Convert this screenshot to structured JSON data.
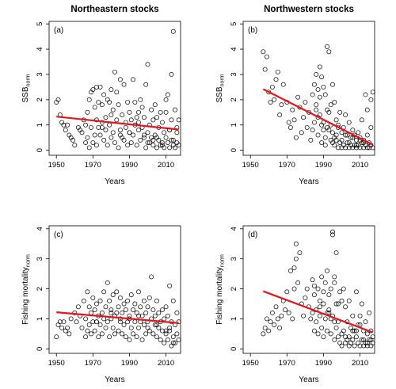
{
  "column_titles": [
    "Northeastern stocks",
    "Northwestern stocks"
  ],
  "colors": {
    "points": "#000000",
    "trend": "#e8141b"
  },
  "chart_data": [
    {
      "type": "scatter",
      "panel": "(a)",
      "xlabel": "Years",
      "ylabel_main": "SSB",
      "ylabel_sub": "norm",
      "xlim": [
        1946,
        2018
      ],
      "ylim": [
        -0.2,
        5.1
      ],
      "xticks": [
        1950,
        1970,
        1990,
        2010
      ],
      "yticks": [
        0,
        1,
        2,
        3,
        4,
        5
      ],
      "trend": {
        "x": [
          1950,
          2017
        ],
        "y": [
          1.33,
          0.82
        ]
      },
      "x": [
        1950,
        1951,
        1952,
        1953,
        1954,
        1955,
        1956,
        1957,
        1958,
        1959,
        1960,
        1962,
        1963,
        1964,
        1965,
        1966,
        1966,
        1967,
        1967,
        1968,
        1968,
        1969,
        1969,
        1970,
        1970,
        1971,
        1971,
        1972,
        1972,
        1973,
        1973,
        1974,
        1974,
        1975,
        1975,
        1976,
        1976,
        1977,
        1977,
        1978,
        1978,
        1979,
        1979,
        1980,
        1980,
        1981,
        1981,
        1982,
        1982,
        1983,
        1983,
        1984,
        1984,
        1985,
        1985,
        1986,
        1986,
        1987,
        1987,
        1988,
        1988,
        1989,
        1989,
        1990,
        1990,
        1991,
        1991,
        1992,
        1992,
        1993,
        1993,
        1994,
        1994,
        1995,
        1995,
        1996,
        1996,
        1997,
        1997,
        1998,
        1998,
        1999,
        1999,
        2000,
        2000,
        2001,
        2001,
        2002,
        2002,
        2003,
        2003,
        2004,
        2004,
        2005,
        2005,
        2006,
        2006,
        2007,
        2007,
        2008,
        2008,
        2009,
        2009,
        2010,
        2010,
        2011,
        2011,
        2012,
        2012,
        2013,
        2013,
        2014,
        2014,
        2015,
        2015,
        2016,
        2016,
        2017,
        2017,
        1985,
        1995,
        2000,
        2005,
        2010,
        2013,
        1975,
        1980,
        1990,
        2008,
        2014,
        2012,
        2003,
        1998,
        1972,
        2016
      ],
      "y": [
        1.9,
        2.0,
        1.4,
        1.1,
        1.0,
        0.8,
        1.0,
        0.6,
        0.5,
        0.4,
        0.2,
        0.9,
        0.8,
        0.7,
        1.2,
        1.0,
        0.3,
        1.5,
        0.5,
        2.0,
        0.1,
        2.3,
        0.9,
        2.4,
        0.3,
        1.7,
        0.6,
        2.5,
        0.2,
        1.9,
        0.9,
        2.5,
        0.6,
        1.8,
        1.1,
        2.2,
        0.4,
        1.3,
        0.8,
        2.0,
        0.2,
        1.9,
        1.0,
        2.4,
        0.5,
        1.6,
        0.7,
        3.1,
        0.3,
        2.3,
        1.2,
        1.8,
        0.1,
        2.8,
        0.8,
        1.4,
        0.5,
        2.6,
        0.4,
        1.1,
        0.9,
        1.9,
        0.2,
        1.5,
        0.7,
        1.2,
        0.3,
        2.8,
        0.6,
        1.9,
        1.0,
        1.3,
        0.2,
        1.5,
        0.8,
        2.0,
        0.4,
        1.7,
        0.9,
        1.3,
        0.5,
        2.6,
        0.1,
        3.4,
        0.7,
        1.0,
        0.3,
        1.6,
        0.5,
        1.2,
        0.2,
        1.8,
        0.6,
        1.3,
        0.1,
        0.9,
        0.4,
        1.5,
        0.2,
        1.1,
        0.3,
        0.7,
        0.1,
        1.5,
        0.5,
        2.2,
        0.3,
        0.8,
        0.1,
        1.2,
        0.4,
        4.7,
        0.2,
        1.6,
        0.1,
        0.9,
        0.3,
        1.2,
        0.2,
        0.6,
        1.1,
        0.3,
        0.5,
        2.0,
        3.0,
        0.9,
        1.4,
        0.7,
        0.2,
        0.4,
        0.8,
        0.4,
        0.6,
        1.2,
        0.7
      ]
    },
    {
      "type": "scatter",
      "panel": "(b)",
      "xlabel": "Years",
      "ylabel_main": "SSB",
      "ylabel_sub": "norm",
      "xlim": [
        1946,
        2018
      ],
      "ylim": [
        -0.2,
        5.1
      ],
      "xticks": [
        1950,
        1970,
        1990,
        2010
      ],
      "yticks": [
        0,
        1,
        2,
        3,
        4,
        5
      ],
      "trend": {
        "x": [
          1957,
          2017
        ],
        "y": [
          2.42,
          0.22
        ]
      },
      "x": [
        1957,
        1958,
        1959,
        1960,
        1961,
        1962,
        1963,
        1964,
        1965,
        1966,
        1967,
        1968,
        1970,
        1971,
        1972,
        1973,
        1974,
        1975,
        1976,
        1977,
        1978,
        1979,
        1980,
        1981,
        1982,
        1983,
        1984,
        1984,
        1985,
        1985,
        1986,
        1986,
        1987,
        1987,
        1988,
        1988,
        1989,
        1989,
        1990,
        1990,
        1991,
        1991,
        1992,
        1992,
        1993,
        1993,
        1994,
        1994,
        1995,
        1995,
        1996,
        1996,
        1997,
        1997,
        1998,
        1998,
        1999,
        1999,
        2000,
        2000,
        2001,
        2001,
        2002,
        2002,
        2003,
        2003,
        2004,
        2004,
        2005,
        2005,
        2006,
        2006,
        2007,
        2007,
        2008,
        2008,
        2009,
        2009,
        2010,
        2010,
        2011,
        2011,
        2012,
        2012,
        2013,
        2013,
        2014,
        2014,
        2015,
        2015,
        2016,
        2016,
        2017,
        2017,
        1986,
        1988,
        1990,
        1992,
        1994,
        1996,
        1998,
        2000,
        2002,
        2004,
        2006,
        2008,
        2010,
        2012,
        2014,
        2016,
        1987,
        1989,
        1991,
        1993,
        1995,
        1997
      ],
      "y": [
        3.9,
        3.2,
        3.7,
        2.3,
        1.9,
        2.5,
        2.0,
        2.8,
        3.1,
        1.4,
        1.8,
        2.6,
        1.9,
        1.1,
        0.9,
        1.6,
        1.2,
        0.5,
        2.1,
        1.7,
        0.7,
        1.3,
        1.9,
        0.9,
        1.5,
        0.4,
        2.2,
        0.8,
        2.6,
        1.1,
        3.0,
        1.6,
        2.4,
        0.6,
        3.3,
        1.4,
        2.9,
        0.3,
        2.5,
        1.1,
        2.2,
        0.2,
        4.1,
        0.9,
        3.9,
        1.5,
        1.8,
        0.4,
        2.6,
        0.7,
        1.9,
        0.2,
        1.2,
        0.6,
        1.0,
        0.1,
        1.5,
        0.3,
        0.7,
        0.1,
        0.9,
        0.2,
        1.4,
        0.1,
        0.6,
        0.3,
        1.1,
        0.1,
        0.5,
        0.2,
        0.8,
        0.1,
        0.6,
        0.2,
        0.4,
        0.1,
        0.7,
        0.2,
        0.5,
        0.1,
        1.2,
        0.3,
        0.4,
        0.1,
        2.2,
        0.2,
        1.6,
        0.1,
        0.3,
        0.1,
        2.0,
        0.2,
        2.3,
        0.1,
        1.8,
        2.1,
        0.8,
        1.6,
        1.0,
        0.5,
        0.9,
        0.4,
        0.6,
        0.3,
        0.5,
        0.2,
        0.4,
        0.3,
        0.6,
        0.9,
        1.3,
        1.0,
        0.5,
        0.8,
        0.3,
        0.4
      ]
    },
    {
      "type": "scatter",
      "panel": "(c)",
      "xlabel": "Years",
      "ylabel_main": "Fishing mortality",
      "ylabel_sub": "norm",
      "xlim": [
        1946,
        2018
      ],
      "ylim": [
        -0.15,
        4.1
      ],
      "xticks": [
        1950,
        1970,
        1990,
        2010
      ],
      "yticks": [
        0,
        1,
        2,
        3,
        4
      ],
      "trend": {
        "x": [
          1950,
          2017
        ],
        "y": [
          1.22,
          0.86
        ]
      },
      "x": [
        1950,
        1951,
        1952,
        1953,
        1954,
        1955,
        1956,
        1957,
        1958,
        1960,
        1961,
        1962,
        1963,
        1964,
        1965,
        1966,
        1966,
        1967,
        1967,
        1968,
        1968,
        1969,
        1969,
        1970,
        1970,
        1971,
        1971,
        1972,
        1972,
        1973,
        1973,
        1974,
        1974,
        1975,
        1975,
        1976,
        1976,
        1977,
        1977,
        1978,
        1978,
        1979,
        1979,
        1980,
        1980,
        1981,
        1981,
        1982,
        1982,
        1983,
        1983,
        1984,
        1984,
        1985,
        1985,
        1986,
        1986,
        1987,
        1987,
        1988,
        1988,
        1989,
        1989,
        1990,
        1990,
        1991,
        1991,
        1992,
        1992,
        1993,
        1993,
        1994,
        1994,
        1995,
        1995,
        1996,
        1996,
        1997,
        1997,
        1998,
        1998,
        1999,
        1999,
        2000,
        2000,
        2001,
        2001,
        2002,
        2002,
        2003,
        2003,
        2004,
        2004,
        2005,
        2005,
        2006,
        2006,
        2007,
        2007,
        2008,
        2008,
        2009,
        2009,
        2010,
        2010,
        2011,
        2011,
        2012,
        2012,
        2013,
        2013,
        2014,
        2014,
        2015,
        2015,
        2016,
        2016,
        2017,
        2017,
        1985,
        1995,
        2005,
        2012,
        1972,
        1980,
        1990,
        2000,
        2010,
        2014
      ],
      "y": [
        0.4,
        0.8,
        0.9,
        0.7,
        0.9,
        0.6,
        0.7,
        0.5,
        1.0,
        1.2,
        0.9,
        1.4,
        1.1,
        0.7,
        1.6,
        1.0,
        0.4,
        1.9,
        0.6,
        1.4,
        0.8,
        1.2,
        0.5,
        1.7,
        0.9,
        1.3,
        0.6,
        1.5,
        0.9,
        1.1,
        0.4,
        1.6,
        0.8,
        1.2,
        0.5,
        1.9,
        1.0,
        1.4,
        0.7,
        2.2,
        0.9,
        1.6,
        0.4,
        1.3,
        1.0,
        1.8,
        0.7,
        1.1,
        0.5,
        1.9,
        1.2,
        1.4,
        0.6,
        1.7,
        0.9,
        1.2,
        0.5,
        1.5,
        0.8,
        1.3,
        0.4,
        1.6,
        0.9,
        1.1,
        0.3,
        1.8,
        0.7,
        1.3,
        0.5,
        1.5,
        0.9,
        1.2,
        0.4,
        1.9,
        0.7,
        1.4,
        0.9,
        1.1,
        0.3,
        1.6,
        0.8,
        1.2,
        0.5,
        1.4,
        0.9,
        1.7,
        0.6,
        2.4,
        1.0,
        1.3,
        0.5,
        1.1,
        0.8,
        1.6,
        0.4,
        1.2,
        0.7,
        0.9,
        0.3,
        1.3,
        0.6,
        1.0,
        0.2,
        1.4,
        0.5,
        1.1,
        0.3,
        2.1,
        0.7,
        0.9,
        0.1,
        1.6,
        0.4,
        0.8,
        0.2,
        1.2,
        0.5,
        0.9,
        0.3,
        1.0,
        1.1,
        0.8,
        0.6,
        0.9,
        1.2,
        1.0,
        0.7,
        0.6,
        0.2
      ]
    },
    {
      "type": "scatter",
      "panel": "(d)",
      "xlabel": "Years",
      "ylabel_main": "Fishing mortality",
      "ylabel_sub": "norm",
      "xlim": [
        1946,
        2018
      ],
      "ylim": [
        -0.15,
        4.1
      ],
      "xticks": [
        1950,
        1970,
        1990,
        2010
      ],
      "yticks": [
        0,
        1,
        2,
        3,
        4
      ],
      "trend": {
        "x": [
          1957,
          2017
        ],
        "y": [
          1.92,
          0.55
        ]
      },
      "x": [
        1957,
        1958,
        1959,
        1960,
        1961,
        1962,
        1963,
        1964,
        1965,
        1966,
        1967,
        1968,
        1969,
        1970,
        1971,
        1972,
        1973,
        1974,
        1975,
        1976,
        1977,
        1978,
        1979,
        1980,
        1981,
        1982,
        1983,
        1984,
        1984,
        1985,
        1985,
        1986,
        1986,
        1987,
        1987,
        1988,
        1988,
        1989,
        1989,
        1990,
        1990,
        1991,
        1991,
        1992,
        1992,
        1993,
        1993,
        1994,
        1994,
        1995,
        1995,
        1996,
        1996,
        1997,
        1997,
        1998,
        1998,
        1999,
        1999,
        2000,
        2000,
        2001,
        2001,
        2002,
        2002,
        2003,
        2003,
        2004,
        2004,
        2005,
        2005,
        2006,
        2006,
        2007,
        2007,
        2008,
        2008,
        2009,
        2009,
        2010,
        2010,
        2011,
        2011,
        2012,
        2012,
        2013,
        2013,
        2014,
        2014,
        2015,
        2015,
        2016,
        2016,
        2017,
        2017,
        1974,
        1975,
        1995,
        1996,
        1997,
        1985,
        1988,
        1992,
        1994,
        1996,
        2000,
        2004,
        2008,
        2012,
        1990,
        1993,
        1998,
        2002,
        2006,
        2010,
        2014,
        2016
      ],
      "y": [
        0.5,
        0.7,
        1.0,
        0.6,
        0.9,
        1.2,
        0.8,
        1.4,
        1.0,
        0.7,
        1.1,
        1.6,
        1.3,
        1.9,
        1.2,
        2.6,
        1.0,
        2.0,
        3.5,
        2.2,
        3.2,
        1.5,
        1.1,
        1.7,
        2.0,
        1.4,
        1.0,
        2.3,
        1.2,
        1.8,
        0.6,
        1.3,
        0.9,
        2.0,
        0.5,
        1.6,
        1.1,
        2.4,
        0.7,
        1.9,
        0.4,
        2.2,
        1.0,
        2.6,
        0.6,
        1.8,
        1.2,
        2.0,
        0.5,
        3.8,
        1.1,
        2.2,
        0.3,
        3.2,
        0.7,
        1.5,
        0.4,
        1.9,
        0.2,
        1.6,
        0.1,
        2.0,
        0.6,
        1.4,
        0.2,
        0.9,
        0.3,
        1.6,
        0.1,
        0.7,
        0.2,
        1.1,
        0.3,
        0.6,
        0.1,
        1.9,
        0.4,
        0.8,
        0.2,
        1.1,
        0.1,
        1.5,
        0.3,
        0.6,
        0.1,
        0.9,
        0.2,
        0.5,
        0.1,
        1.2,
        0.3,
        0.6,
        0.1,
        0.4,
        0.2,
        2.7,
        3.0,
        3.9,
        2.4,
        1.5,
        2.1,
        1.4,
        1.2,
        1.0,
        0.9,
        0.5,
        0.4,
        0.6,
        0.3,
        1.5,
        1.3,
        0.9,
        0.4,
        0.6,
        0.8,
        0.2,
        0.3
      ]
    }
  ]
}
